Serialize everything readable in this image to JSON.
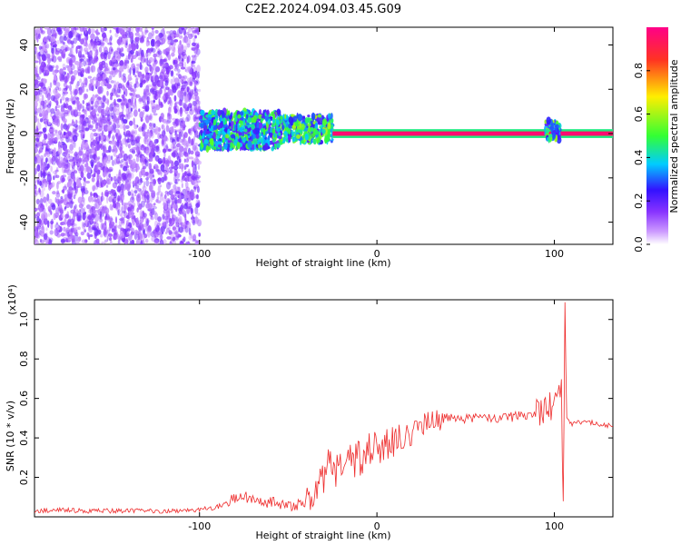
{
  "title": "C2E2.2024.094.03.45.G09",
  "colors": {
    "snr_line": "#ee2b2b",
    "background": "#ffffff",
    "spectrogram_scale": [
      "#ffffff",
      "#cc99ff",
      "#8833ff",
      "#3311ff",
      "#00ccff",
      "#33ff33",
      "#ffee00",
      "#ff3322",
      "#ff0088"
    ]
  },
  "chart_data": [
    {
      "type": "heatmap",
      "xlabel": "Height of straight line (km)",
      "ylabel": "Frequency (Hz)",
      "xlim": [
        -193,
        133
      ],
      "ylim": [
        -50,
        48
      ],
      "x_ticks": [
        -100,
        0,
        100
      ],
      "y_ticks": [
        -40,
        -20,
        0,
        20,
        40
      ],
      "colorbar": {
        "label": "Normalized spectral amplitude",
        "range": [
          0.0,
          1.0
        ],
        "ticks": [
          0.0,
          0.2,
          0.4,
          0.6,
          0.8
        ]
      },
      "features": [
        {
          "x_range": [
            -193,
            -100
          ],
          "freq_range": [
            -50,
            48
          ],
          "amplitude": 0.15
        },
        {
          "x_range": [
            -100,
            -55
          ],
          "freq_range": [
            -7,
            10
          ],
          "amplitude": 0.45
        },
        {
          "x_range": [
            -55,
            -25
          ],
          "freq_range": [
            -4,
            8
          ],
          "amplitude": 0.5
        },
        {
          "x_range": [
            -25,
            133
          ],
          "freq_range": [
            -1,
            1
          ],
          "amplitude": 0.95
        },
        {
          "x_range": [
            95,
            103
          ],
          "freq_range": [
            -3,
            6
          ],
          "amplitude": 0.5
        }
      ]
    },
    {
      "type": "line",
      "xlabel": "Height of straight line (km)",
      "ylabel": "SNR (10 * v/v)",
      "y_multiplier": "(x10⁴)",
      "xlim": [
        -193,
        133
      ],
      "ylim": [
        0,
        1.1
      ],
      "x_ticks": [
        -100,
        0,
        100
      ],
      "y_ticks": [
        0.2,
        0.4,
        0.6,
        0.8,
        1.0
      ],
      "series": [
        {
          "x": [
            -193,
            -180,
            -160,
            -140,
            -120,
            -100,
            -90,
            -85,
            -80,
            -75,
            -70,
            -65,
            -60,
            -55,
            -50,
            -45,
            -40,
            -35,
            -32,
            -30,
            -28,
            -25,
            -20,
            -15,
            -10,
            -5,
            0,
            5,
            10,
            15,
            20,
            25,
            30,
            35,
            40,
            50,
            60,
            70,
            80,
            85,
            90,
            95,
            100,
            102,
            104,
            105,
            106,
            107,
            110,
            115,
            120,
            125,
            133
          ],
          "y": [
            0.03,
            0.035,
            0.03,
            0.03,
            0.03,
            0.035,
            0.05,
            0.07,
            0.09,
            0.11,
            0.08,
            0.07,
            0.08,
            0.06,
            0.05,
            0.06,
            0.08,
            0.1,
            0.18,
            0.2,
            0.32,
            0.22,
            0.26,
            0.28,
            0.3,
            0.33,
            0.35,
            0.36,
            0.38,
            0.4,
            0.43,
            0.46,
            0.48,
            0.49,
            0.5,
            0.5,
            0.5,
            0.5,
            0.51,
            0.52,
            0.53,
            0.55,
            0.56,
            0.6,
            0.66,
            0.08,
            1.1,
            0.5,
            0.47,
            0.48,
            0.48,
            0.47,
            0.46
          ]
        }
      ]
    }
  ]
}
